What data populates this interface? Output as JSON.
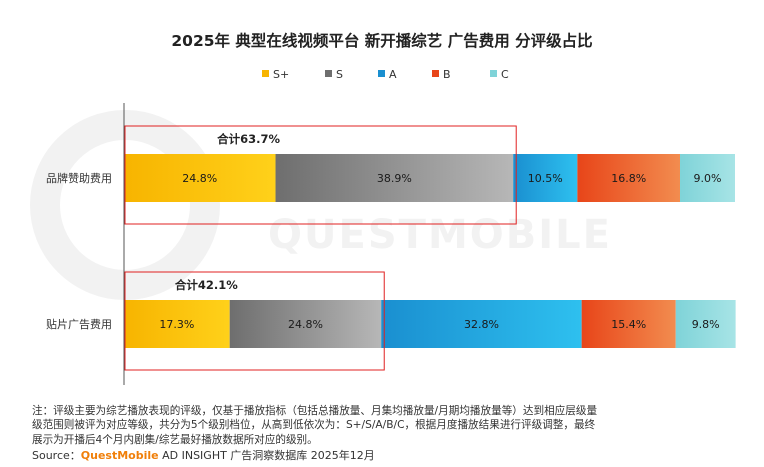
{
  "colors": {
    "S+": [
      "#f7b400",
      "#ffd11a"
    ],
    "S": [
      "#6e6e6e",
      "#b7b7b7"
    ],
    "A": [
      "#1a8fd0",
      "#2ec0ef"
    ],
    "B": [
      "#e84519",
      "#f28c4f"
    ],
    "C": [
      "#7fd3d8",
      "#a7e4e6"
    ],
    "highlight": "#e02020",
    "watermark": "#f2f2f2"
  },
  "chart_data": {
    "type": "bar",
    "orientation": "horizontal",
    "stacked": true,
    "title": "2025年 典型在线视频平台 新开播综艺 广告费用 分评级占比",
    "categories": [
      "品牌赞助费用",
      "贴片广告费用"
    ],
    "series": [
      {
        "name": "S+",
        "values": [
          24.8,
          17.3
        ]
      },
      {
        "name": "S",
        "values": [
          38.9,
          24.8
        ]
      },
      {
        "name": "A",
        "values": [
          10.5,
          32.8
        ]
      },
      {
        "name": "B",
        "values": [
          16.8,
          15.4
        ]
      },
      {
        "name": "C",
        "values": [
          9.0,
          9.8
        ]
      }
    ],
    "value_labels": [
      [
        "24.8%",
        "38.9%",
        "10.5%",
        "16.8%",
        "9.0%"
      ],
      [
        "17.3%",
        "24.8%",
        "32.8%",
        "15.4%",
        "9.8%"
      ]
    ],
    "annotations": [
      "合计63.7%",
      "合计42.1%"
    ],
    "annotation_spans": [
      [
        0,
        1
      ],
      [
        0,
        1
      ]
    ],
    "xlim": [
      0,
      100
    ],
    "legend": "top-center",
    "grid": false
  },
  "watermark": "QUESTMOBILE",
  "note_lines": [
    "注：评级主要为综艺播放表现的评级，仅基于播放指标（包括总播放量、月集均播放量/月期均播放量等）达到相应层级量",
    "级范围则被评为对应等级，共分为5个级别档位，从高到低依次为：S+/S/A/B/C，根据月度播放结果进行评级调整，最终",
    "展示为开播后4个月内剧集/综艺最好播放数据所对应的级别。"
  ],
  "source": {
    "prefix": "Source：",
    "brand": "QuestMobile",
    "suffix": " AD INSIGHT 广告洞察数据库 2025年12月"
  }
}
